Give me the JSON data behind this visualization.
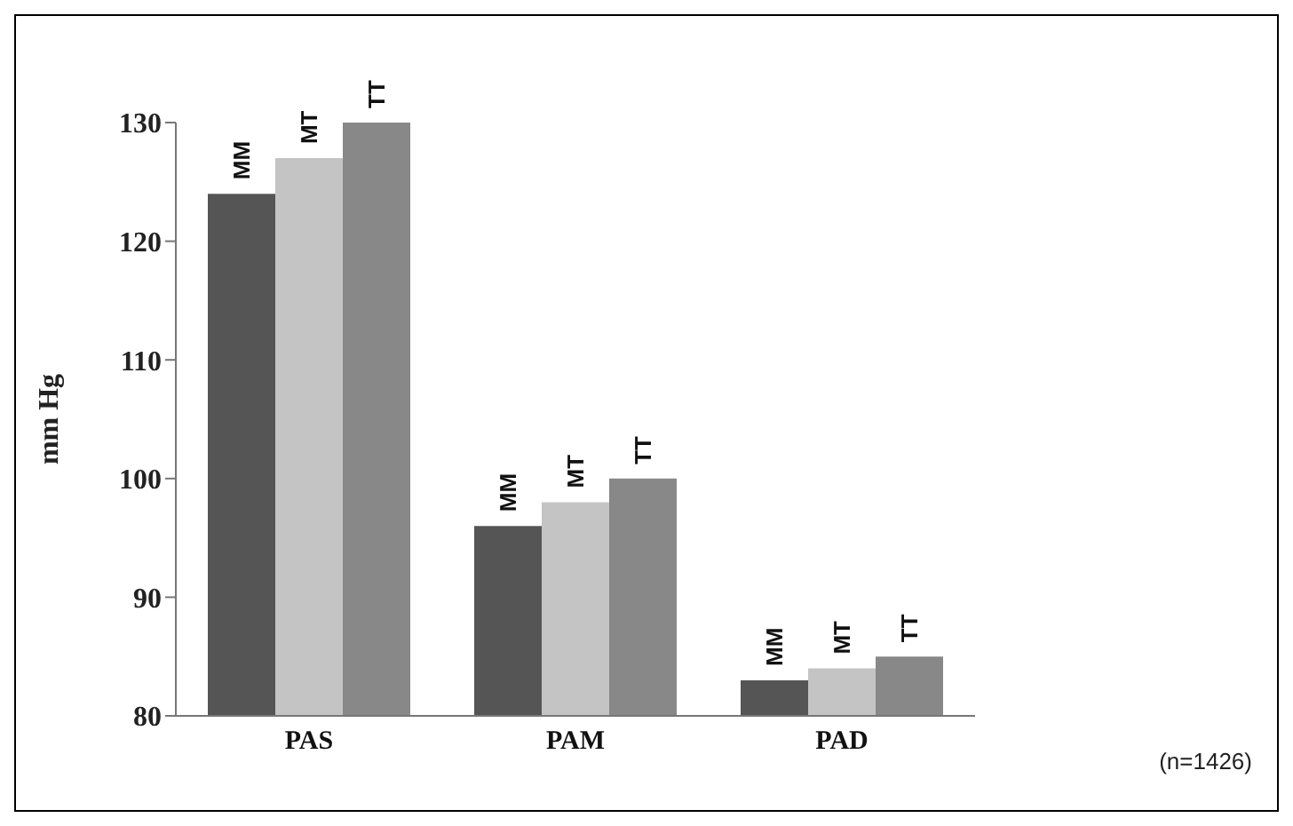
{
  "chart_data": {
    "type": "bar",
    "ylabel": "mm Hg",
    "categories": [
      "PAS",
      "PAM",
      "PAD"
    ],
    "series": [
      {
        "name": "MM",
        "color": "#555555",
        "values": [
          124,
          96,
          83
        ]
      },
      {
        "name": "MT",
        "color": "#c4c4c4",
        "values": [
          127,
          98,
          84
        ]
      },
      {
        "name": "TT",
        "color": "#888888",
        "values": [
          130,
          100,
          85
        ]
      }
    ],
    "ylim": [
      80,
      130
    ],
    "yticks": [
      80,
      90,
      100,
      110,
      120,
      130
    ],
    "grid": false,
    "legend": false,
    "annotations": [
      "(n=1426)"
    ]
  }
}
